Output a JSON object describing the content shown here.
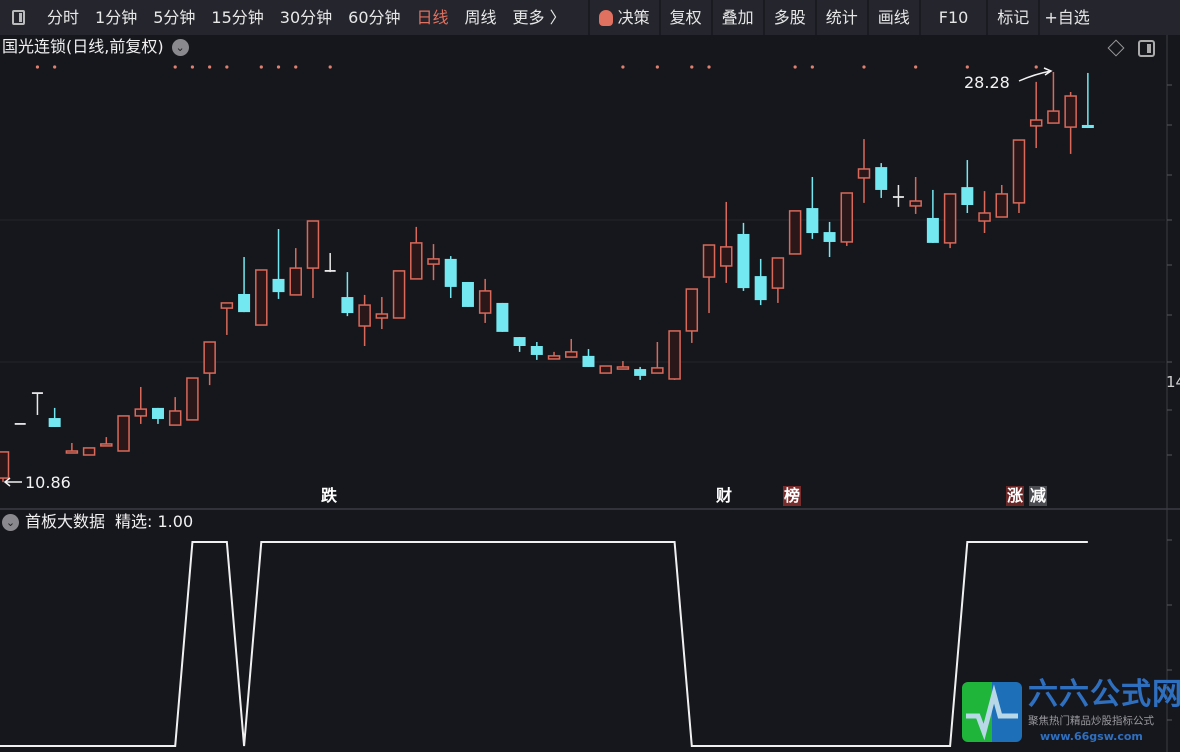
{
  "toolbar": {
    "periods": [
      "分时",
      "1分钟",
      "5分钟",
      "15分钟",
      "30分钟",
      "60分钟",
      "日线",
      "周线",
      "更多 〉"
    ],
    "active_period": "日线",
    "tools": [
      "决策",
      "复权",
      "叠加",
      "多股",
      "统计",
      "画线",
      "F10",
      "标记",
      "+自选"
    ]
  },
  "chart_title": "国光连锁(日线,前复权)",
  "indicator": {
    "name": "首板大数据",
    "value_label": "精选: 1.00"
  },
  "right_axis_label": "14",
  "events": [
    {
      "text": "跌",
      "color": "#ffffff",
      "bg": "transparent"
    },
    {
      "text": "财",
      "color": "#ffffff",
      "bg": "transparent"
    },
    {
      "text": "榜",
      "color": "#ffffff",
      "bg": "#7a2b2b"
    },
    {
      "text": "涨",
      "color": "#ffffff",
      "bg": "#6b2626"
    },
    {
      "text": "减",
      "color": "#ffffff",
      "bg": "#4a4c52"
    }
  ],
  "logo": {
    "name": "六六公式网",
    "slogan": "聚焦热门精品炒股指标公式",
    "url": "www.66gsw.com"
  },
  "colors": {
    "up": "#d9695a",
    "down": "#74e8f0",
    "flat": "#e8e8e8",
    "active_tab": "#e0705f",
    "indicator_line": "#f0f0f0",
    "background": "#16171c"
  },
  "chart_data": [
    {
      "type": "candlestick",
      "title": "国光连锁(日线,前复权)",
      "ohlc_fields": [
        "open",
        "high",
        "low",
        "close"
      ],
      "ohlc": [
        [
          11.03,
          12.14,
          10.86,
          12.14
        ],
        [
          13.33,
          13.33,
          13.33,
          13.33
        ],
        [
          14.64,
          14.64,
          13.71,
          14.64
        ],
        [
          13.58,
          14.01,
          13.2,
          13.2
        ],
        [
          12.16,
          12.52,
          12.14,
          12.18
        ],
        [
          12.01,
          12.31,
          12.01,
          12.31
        ],
        [
          12.41,
          12.77,
          12.39,
          12.48
        ],
        [
          12.18,
          13.67,
          12.18,
          13.67
        ],
        [
          13.67,
          14.9,
          13.33,
          13.96
        ],
        [
          14.01,
          14.01,
          13.33,
          13.54
        ],
        [
          13.28,
          14.47,
          13.28,
          13.88
        ],
        [
          13.5,
          15.28,
          13.5,
          15.28
        ],
        [
          15.49,
          16.81,
          14.98,
          16.81
        ],
        [
          18.25,
          18.47,
          17.11,
          18.47
        ],
        [
          18.85,
          20.42,
          18.08,
          18.08
        ],
        [
          17.53,
          19.87,
          17.53,
          19.87
        ],
        [
          19.49,
          21.61,
          18.64,
          18.93
        ],
        [
          18.81,
          20.8,
          18.81,
          19.95
        ],
        [
          19.95,
          21.95,
          18.68,
          21.95
        ],
        [
          19.83,
          20.59,
          19.78,
          19.83
        ],
        [
          18.72,
          19.78,
          17.91,
          18.04
        ],
        [
          17.49,
          18.81,
          16.64,
          18.38
        ],
        [
          17.83,
          18.72,
          17.36,
          18.0
        ],
        [
          17.83,
          19.83,
          17.83,
          19.83
        ],
        [
          19.49,
          21.7,
          19.49,
          21.02
        ],
        [
          20.12,
          20.97,
          19.44,
          20.34
        ],
        [
          20.34,
          20.46,
          18.68,
          19.15
        ],
        [
          19.36,
          19.36,
          18.3,
          18.3
        ],
        [
          18.04,
          19.49,
          17.62,
          18.98
        ],
        [
          18.47,
          18.47,
          17.24,
          17.24
        ],
        [
          17.02,
          17.02,
          16.39,
          16.64
        ],
        [
          16.64,
          16.81,
          16.05,
          16.26
        ],
        [
          16.09,
          16.39,
          16.09,
          16.22
        ],
        [
          16.17,
          16.94,
          16.17,
          16.39
        ],
        [
          16.22,
          16.51,
          15.75,
          15.75
        ],
        [
          15.49,
          15.79,
          15.49,
          15.79
        ],
        [
          15.66,
          16.0,
          15.66,
          15.75
        ],
        [
          15.66,
          15.75,
          15.2,
          15.37
        ],
        [
          15.49,
          16.81,
          15.49,
          15.71
        ],
        [
          15.24,
          17.28,
          15.2,
          17.28
        ],
        [
          17.28,
          19.06,
          16.77,
          19.06
        ],
        [
          19.57,
          20.93,
          18.04,
          20.93
        ],
        [
          20.04,
          22.76,
          19.32,
          20.85
        ],
        [
          21.4,
          21.87,
          18.98,
          19.1
        ],
        [
          19.61,
          20.34,
          18.38,
          18.59
        ],
        [
          19.1,
          20.38,
          18.47,
          20.38
        ],
        [
          20.55,
          22.38,
          20.55,
          22.38
        ],
        [
          22.5,
          23.82,
          21.19,
          21.44
        ],
        [
          21.48,
          21.91,
          20.42,
          21.06
        ],
        [
          21.06,
          23.14,
          20.89,
          23.14
        ],
        [
          23.78,
          25.43,
          22.72,
          24.16
        ],
        [
          24.24,
          24.41,
          22.93,
          23.27
        ],
        [
          22.97,
          23.48,
          22.55,
          22.97
        ],
        [
          22.59,
          23.82,
          22.25,
          22.8
        ],
        [
          22.08,
          23.27,
          21.02,
          21.02
        ],
        [
          21.02,
          23.1,
          20.8,
          23.1
        ],
        [
          23.39,
          24.54,
          22.29,
          22.63
        ],
        [
          21.95,
          23.22,
          21.44,
          22.29
        ],
        [
          22.12,
          23.48,
          22.12,
          23.1
        ],
        [
          22.72,
          25.39,
          22.29,
          25.39
        ],
        [
          25.99,
          27.86,
          25.05,
          26.24
        ],
        [
          26.11,
          28.28,
          26.11,
          26.62
        ],
        [
          25.94,
          27.43,
          24.8,
          27.26
        ],
        [
          26.03,
          28.24,
          25.9,
          25.9
        ]
      ],
      "annotations": [
        {
          "text": "28.28",
          "candle_index": 61,
          "at": "high"
        },
        {
          "text": "10.86",
          "candle_index": 0,
          "at": "low"
        }
      ],
      "event_candle_indices": [
        19,
        42,
        46,
        59,
        60
      ],
      "marker_dot_indices": [
        2,
        3,
        10,
        11,
        12,
        13,
        15,
        16,
        17,
        19,
        36,
        38,
        40,
        41,
        46,
        47,
        50,
        53,
        56,
        60
      ],
      "ylim": [
        10.86,
        28.28
      ],
      "grid": true
    },
    {
      "type": "line",
      "title": "首板大数据",
      "values": [
        0,
        0,
        0,
        0,
        0,
        0,
        0,
        0,
        0,
        0,
        0,
        1,
        1,
        1,
        0,
        1,
        1,
        1,
        1,
        1,
        1,
        1,
        1,
        1,
        1,
        1,
        1,
        1,
        1,
        1,
        1,
        1,
        1,
        1,
        1,
        1,
        1,
        1,
        1,
        1,
        0,
        0,
        0,
        0,
        0,
        0,
        0,
        0,
        0,
        0,
        0,
        0,
        0,
        0,
        0,
        0,
        1,
        1,
        1,
        1,
        1,
        1,
        1,
        1
      ],
      "ylim": [
        0,
        1
      ]
    }
  ]
}
